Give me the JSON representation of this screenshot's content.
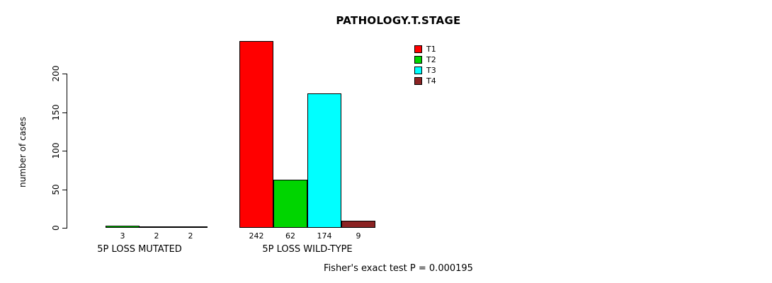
{
  "title": "PATHOLOGY.T.STAGE",
  "chart_data": {
    "type": "bar",
    "title": "PATHOLOGY.T.STAGE",
    "xlabel": "",
    "ylabel": "number of cases",
    "yticks": [
      0,
      50,
      100,
      150,
      200
    ],
    "ylim": [
      0,
      250
    ],
    "grid": false,
    "legend_position": "top-right",
    "legend": [
      {
        "label": "T1",
        "color": "#FF0000"
      },
      {
        "label": "T2",
        "color": "#00D500"
      },
      {
        "label": "T3",
        "color": "#00FFFF"
      },
      {
        "label": "T4",
        "color": "#8B2323"
      }
    ],
    "series": [
      "T1",
      "T2",
      "T3",
      "T4"
    ],
    "groups": [
      {
        "label": "5P LOSS MUTATED",
        "values": [
          0,
          3,
          2,
          2
        ],
        "count_labels": [
          "",
          "3",
          "2",
          "2"
        ]
      },
      {
        "label": "5P LOSS WILD-TYPE",
        "values": [
          242,
          62,
          174,
          9
        ],
        "count_labels": [
          "242",
          "62",
          "174",
          "9"
        ]
      }
    ],
    "annotation": "Fisher's exact test P = 0.000195"
  }
}
